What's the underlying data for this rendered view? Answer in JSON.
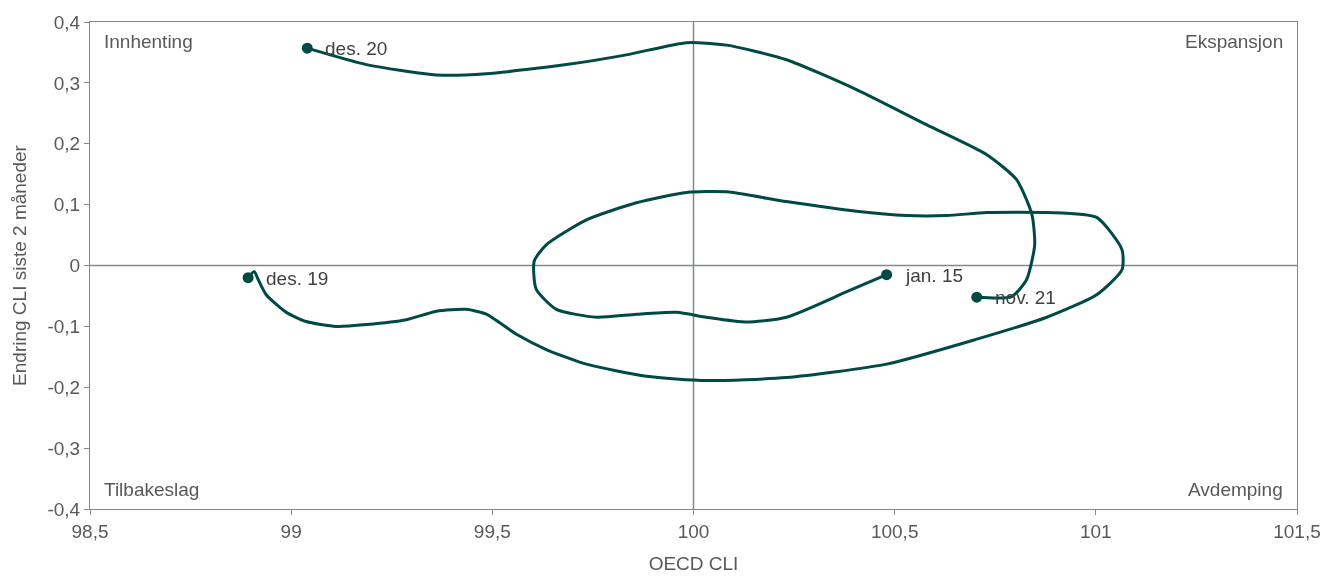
{
  "chart_data": {
    "type": "line",
    "xlabel": "OECD CLI",
    "ylabel": "Endring CLI siste 2 måneder",
    "xlim": [
      98.5,
      101.5
    ],
    "ylim": [
      -0.4,
      0.4
    ],
    "xticks": [
      {
        "value": 98.5,
        "label": "98,5"
      },
      99,
      {
        "value": 99.5,
        "label": "99,5"
      },
      100,
      {
        "value": 100.5,
        "label": "100,5"
      },
      101,
      {
        "value": 101.5,
        "label": "101,5"
      }
    ],
    "yticks": [
      {
        "value": -0.4,
        "label": "-0,4"
      },
      {
        "value": -0.3,
        "label": "-0,3"
      },
      {
        "value": -0.2,
        "label": "-0,2"
      },
      {
        "value": -0.1,
        "label": "-0,1"
      },
      0,
      {
        "value": 0.1,
        "label": "0,1"
      },
      {
        "value": 0.2,
        "label": "0,2"
      },
      {
        "value": 0.3,
        "label": "0,3"
      },
      {
        "value": 0.4,
        "label": "0,4"
      }
    ],
    "grid": false,
    "series": [
      {
        "color": "#004a45",
        "marker": "none",
        "x": [
          100.48,
          100.381,
          100.231,
          100.132,
          100.032,
          99.958,
          99.858,
          99.759,
          99.659,
          99.609,
          99.604,
          99.634,
          99.734,
          99.858,
          99.983,
          100.082,
          100.231,
          100.405,
          100.53,
          100.629,
          100.729,
          100.878,
          101.002,
          101.065,
          101.065,
          101.002,
          100.878,
          100.704,
          100.48,
          100.231,
          100.032,
          99.883,
          99.734,
          99.634,
          99.56,
          99.485,
          99.435,
          99.361,
          99.286,
          99.187,
          99.112,
          99.037,
          98.988,
          98.938,
          98.918,
          98.908,
          98.893,
          null,
          99.04,
          99.187,
          99.361,
          99.485,
          99.684,
          99.833,
          99.983,
          100.082,
          100.231,
          100.405,
          100.58,
          100.729,
          100.803,
          100.841,
          100.848,
          100.828,
          100.791,
          100.704
        ],
        "values": [
          -0.015,
          -0.043,
          -0.085,
          -0.093,
          -0.085,
          -0.077,
          -0.08,
          -0.085,
          -0.072,
          -0.039,
          0.007,
          0.034,
          0.075,
          0.103,
          0.12,
          0.121,
          0.105,
          0.089,
          0.082,
          0.082,
          0.087,
          0.087,
          0.079,
          0.026,
          -0.007,
          -0.048,
          -0.085,
          -0.121,
          -0.162,
          -0.184,
          -0.189,
          -0.182,
          -0.162,
          -0.138,
          -0.113,
          -0.08,
          -0.072,
          -0.075,
          -0.089,
          -0.097,
          -0.1,
          -0.092,
          -0.077,
          -0.048,
          -0.023,
          -0.01,
          -0.02,
          null,
          0.357,
          0.33,
          0.313,
          0.315,
          0.33,
          0.346,
          0.366,
          0.362,
          0.338,
          0.289,
          0.231,
          0.182,
          0.141,
          0.084,
          0.034,
          -0.023,
          -0.051,
          -0.052
        ]
      },
      {
        "type": "scatter",
        "color": "#004a45",
        "marker": "circle",
        "x": [
          100.48,
          98.893,
          99.04,
          100.704
        ],
        "values": [
          -0.015,
          -0.02,
          0.357,
          -0.052
        ]
      }
    ],
    "ref_lines": [
      {
        "axis": "x",
        "value": 100,
        "color": "#7f8c8d"
      },
      {
        "axis": "y",
        "value": 0,
        "color": "#7f8c8d"
      }
    ],
    "annotations": [
      {
        "text": "jan. 15",
        "x": 100.48,
        "y": -0.015
      },
      {
        "text": "des. 19",
        "x": 98.893,
        "y": -0.02
      },
      {
        "text": "des. 20",
        "x": 99.04,
        "y": 0.357
      },
      {
        "text": "nov. 21",
        "x": 100.704,
        "y": -0.052
      },
      "Innhenting",
      "Ekspansjon",
      "Tilbakeslag",
      "Avdemping"
    ]
  }
}
